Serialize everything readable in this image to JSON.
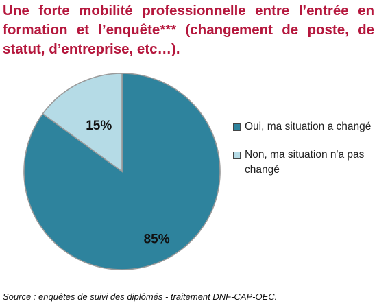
{
  "title": "Une forte mobilité professionnelle entre l’entrée en formation et l’enquête*** (changement de poste, de statut, d’entreprise, etc…).",
  "source": "Source : enquêtes de suivi des diplômés - traitement DNF-CAP-OEC.",
  "chart_data": {
    "type": "pie",
    "slices": [
      {
        "label": "Oui, ma situation a changé",
        "value": 85,
        "display": "85%",
        "color": "#2e839d"
      },
      {
        "label": "Non, ma situation n'a pas changé",
        "value": 15,
        "display": "15%",
        "color": "#b5dbe6"
      }
    ],
    "legend_position": "right"
  }
}
